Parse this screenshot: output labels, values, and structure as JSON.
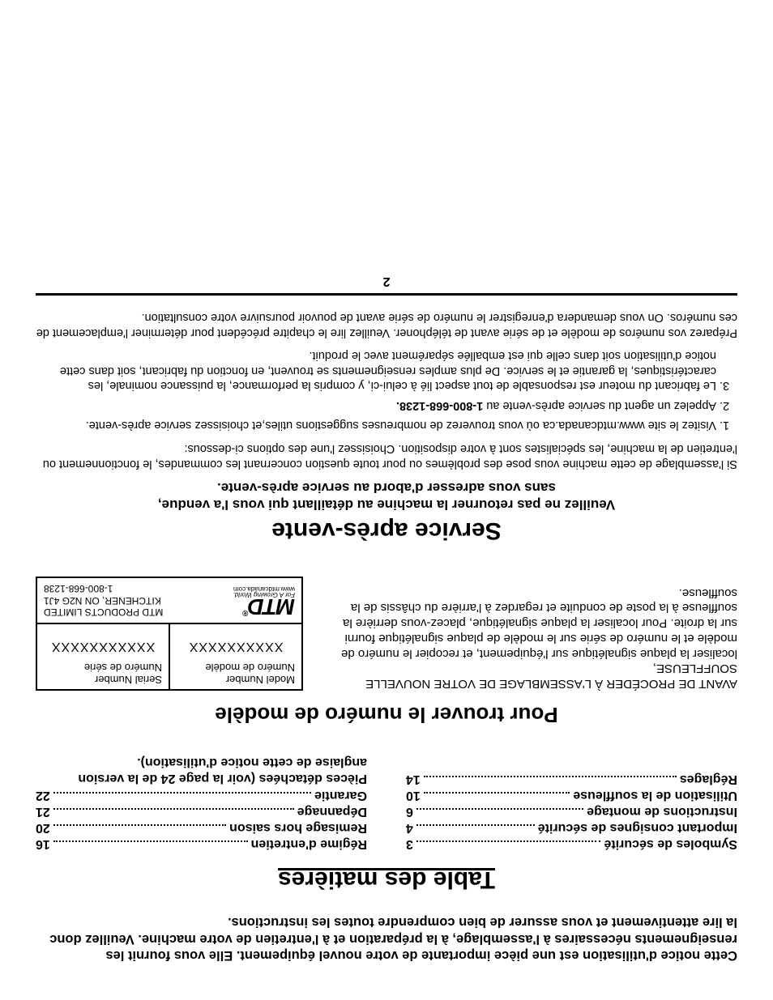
{
  "intro": "Cette notice d'utilisation est une pièce importante de votre nouvel équipement. Elle vous fournit les renseignements nécessaires à l'assemblage, à la préparation et à l'entretien de votre machine. Veuillez donc la lire attentivement et vous assurer de bien comprendre toutes les instructions.",
  "toc": {
    "title": "Table des matières",
    "left": [
      {
        "label": "Symboles de sécurité",
        "page": "3"
      },
      {
        "label": "Important consignes de sécurité",
        "page": "4"
      },
      {
        "label": "Instructions de montage",
        "page": "6"
      },
      {
        "label": "Utilisation de la souffleuse",
        "page": "10"
      },
      {
        "label": "Réglages",
        "page": "14"
      }
    ],
    "right": [
      {
        "label": "Régime d'entretien",
        "page": "16"
      },
      {
        "label": "Remisage hors saison",
        "page": "20"
      },
      {
        "label": "Dépannage",
        "page": "21"
      },
      {
        "label": "Garantie",
        "page": "22"
      }
    ],
    "note": "Pièces détachées (voir la page 24 de la version anglaise de cette notice d'utilisation)."
  },
  "model": {
    "title": "Pour trouver le numéro de modèle",
    "lead": "AVANT DE PROCÉDER À L'ASSEMBLAGE DE VOTRE NOUVELLE SOUFFLEUSE,",
    "body": "localiser la plaque signalétique sur l'équipement, et recopier le numéro de modèle et le numéro de série sur le modèle de plaque signalétique fourni sur la droite. Pour localiser la plaque signalétique, placez-vous derrière la souffleuse à la poste de conduite et regardez à l'arrière du châssis de la souffleuse.",
    "plate": {
      "model_en": "Model Number",
      "model_fr": "Numéro de modèle",
      "model_val": "XXXXXXXXXX",
      "serial_en": "Serial Number",
      "serial_fr": "Numéro de série",
      "serial_val": "XXXXXXXXXXX",
      "brand": "MTD",
      "reg": "®",
      "tagline": "For A Growing World.",
      "url": "www.mtdcanada.com",
      "addr1": "MTD PRODUCTS LIMITED",
      "addr2": "KITCHENER, ON N2G 4J1",
      "phone": "1-800-668-1238"
    }
  },
  "sav": {
    "title": "Service après-vente",
    "sub1": "Veuillez ne pas retourner la machine au détaillant qui vous l'a vendue,",
    "sub2": "sans vous adresser d'abord au service après-vente.",
    "intro": "Si l'assemblage de cette machine vous pose des problèmes ou pour toute question concernant les commandes, le fonctionnement ou l'entretien de la machine, les spécialistes sont à votre disposition. Choisissez l'une des options ci-dessous:",
    "item1": "Visitez le site www.mtdcanada.ca où vous trouverez de nombreuses suggestions utiles,et choisissez service après-vente.",
    "item2_a": "Appelez un agent du service après-vente au ",
    "item2_b": "1-800-668-1238.",
    "item3": "Le fabricant du moteur est responsable de tout aspect lié à celui-ci, y compris la performance, la puissance nominale, les caractéristiques, la garantie et le service. De plus amples renseignements se trouvent, en fonction du fabricant, soit dans cette notice d'utilisation soit dans celle qui est emballée séparément avec le produit.",
    "footer": "Préparez vos numéros de modèle et de série avant de téléphoner. Veuillez lire le chapitre précédent pour déterminer l'emplacement de ces numéros. On vous demandera d'enregistrer le numéro de série avant de pouvoir poursuivre votre consultation."
  },
  "page_number": "2"
}
